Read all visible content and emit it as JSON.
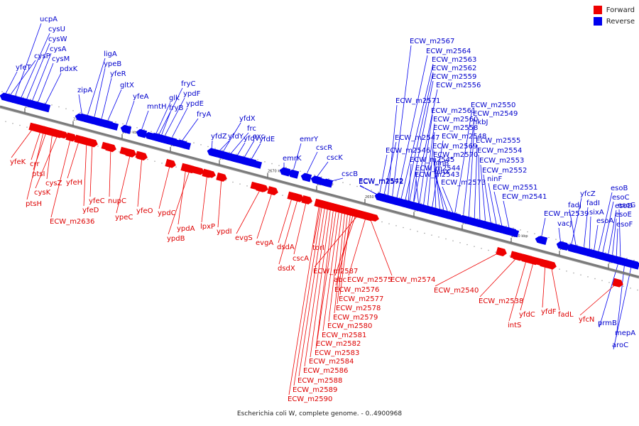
{
  "caption": "Escherichia coli W, complete genome. - 0..4900968",
  "legend": [
    {
      "label": "Forward",
      "color": "#ee0000"
    },
    {
      "label": "Reverse",
      "color": "#0000ee"
    }
  ],
  "colors": {
    "forward": "#ee0000",
    "reverse": "#0000ee",
    "backbone": "#7a7a7a"
  },
  "ticks": [
    {
      "label": "2720 kbp"
    },
    {
      "label": "2710 kbp"
    },
    {
      "label": "2700 kbp"
    },
    {
      "label": "2690 kbp"
    },
    {
      "label": "2680 kbp"
    },
    {
      "label": "2670 kbp"
    },
    {
      "label": "2660 kbp"
    },
    {
      "label": "2650 kbp"
    },
    {
      "label": "2640 kbp"
    },
    {
      "label": "2630 kbp"
    },
    {
      "label": "2620 kbp"
    },
    {
      "label": "2610 kbp"
    },
    {
      "label": "2600 kbp"
    }
  ],
  "reverse_genes": [
    "ucpA",
    "cysU",
    "cysW",
    "cysA",
    "cysM",
    "cysP",
    "yfeT",
    "pdxK",
    "ligA",
    "ypeB",
    "yfeR",
    "zipA",
    "gltX",
    "yfeA",
    "mntH",
    "fryC",
    "ypdF",
    "glk",
    "fryB",
    "ypdE",
    "fryA",
    "yfdX",
    "frc",
    "yfdV",
    "yfdZ",
    "yfdY",
    "oxc",
    "yfdE",
    "emrY",
    "emrK",
    "cscR",
    "cscK",
    "cscB",
    "ECW_m2572",
    "ECW_m2567",
    "ECW_m2564",
    "ECW_m2563",
    "ECW_m2562",
    "ECW_m2559",
    "ECW_m2556",
    "ECW_m2571",
    "ECW_m2561",
    "ECW_m2550",
    "ECW_m2560",
    "ECW_m2549",
    "ECW_m2558",
    "ECW_m2548",
    "hkbJ",
    "ECW_m2547",
    "ECW_m2569",
    "ECW_m2555",
    "ECW_m2546",
    "ECW_m2570",
    "ECW_m2554",
    "ECW_m2545",
    "ninB",
    "ECW_m2553",
    "ECW_m2544",
    "ninX",
    "ECW_m2552",
    "ECW_m2543",
    "ninF",
    "ECW_m2542",
    "ECW_m2573",
    "ECW_m2551",
    "ECW_m2541",
    "ECW_m2539",
    "vacJ",
    "yfcZ",
    "fadJ",
    "fadI",
    "sixA",
    "esoA",
    "esoB",
    "esoC",
    "esoD",
    "esoE",
    "esoF",
    "esoG",
    "prmB",
    "mepA",
    "aroC"
  ],
  "forward_genes": [
    "yfeK",
    "crr",
    "ptsI",
    "cysZ",
    "cysK",
    "ptsH",
    "yfeH",
    "yfeC",
    "yfeD",
    "ECW_m2636",
    "nupC",
    "ypeC",
    "yfeO",
    "ypdC",
    "ypdA",
    "ypdB",
    "lpxP",
    "ypdI",
    "evgS",
    "evgA",
    "dsdA",
    "dsdX",
    "cscA",
    "torI",
    "ECW_m2587",
    "abc",
    "ECW_m2575",
    "ECW_m2576",
    "ECW_m2577",
    "ECW_m2578",
    "ECW_m2579",
    "ECW_m2580",
    "ECW_m2581",
    "ECW_m2582",
    "ECW_m2583",
    "ECW_m2584",
    "ECW_m2586",
    "ECW_m2588",
    "ECW_m2589",
    "ECW_m2590",
    "ECW_m2574",
    "ECW_m2540",
    "ECW_m2538",
    "intS",
    "yfdC",
    "yfdF",
    "fadL",
    "yfcN"
  ]
}
